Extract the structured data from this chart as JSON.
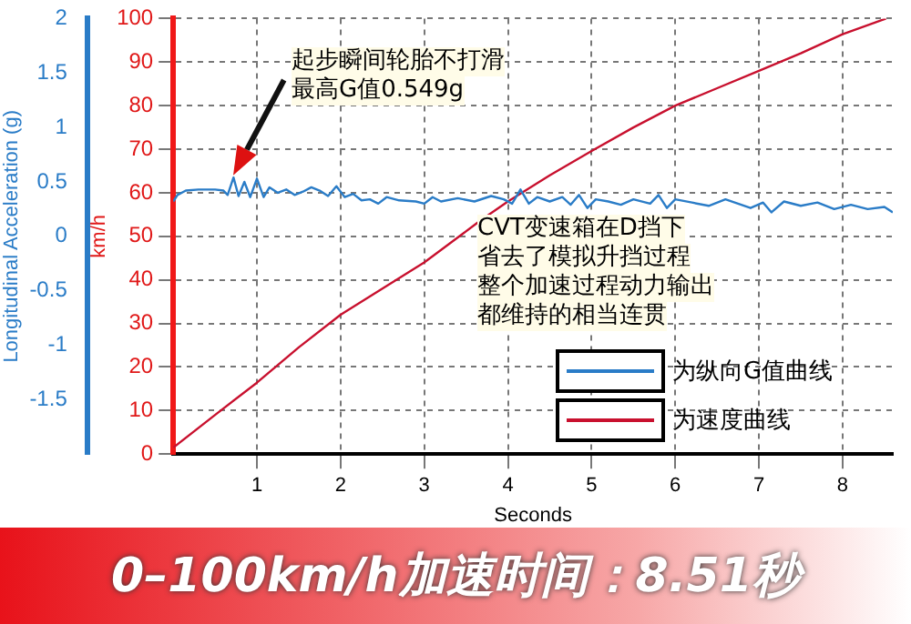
{
  "chart_data": {
    "type": "line",
    "title": "0–100km/h加速时间：8.51秒",
    "xlabel": "Seconds",
    "ylabel": "Longitudinal Acceleration (g)",
    "y2label": "km/h",
    "xlim": [
      0,
      8.6
    ],
    "xticks": [
      1,
      2,
      3,
      4,
      5,
      6,
      7,
      8
    ],
    "ylim": [
      -2,
      2
    ],
    "yticks": [
      -1.5,
      -1,
      -0.5,
      0,
      0.5,
      1,
      1.5,
      2
    ],
    "y2lim": [
      0,
      100
    ],
    "y2ticks": [
      0,
      10,
      20,
      30,
      40,
      50,
      60,
      70,
      80,
      90,
      100
    ],
    "grid": true,
    "legend": "bottom right",
    "marker": "none",
    "line_style": "solid",
    "annotations": [
      "起步瞬间轮胎不打滑",
      "最高G值0.549g",
      "CVT变速箱在D挡下",
      "省去了模拟升挡过程",
      "整个加速过程动力输出",
      "都维持的相当连贯"
    ],
    "series": [
      {
        "name": "为纵向G值曲线",
        "color": "#2a7cc7",
        "x": [
          0,
          0.05,
          0.15,
          0.3,
          0.5,
          0.6,
          0.65,
          0.72,
          0.78,
          0.85,
          0.92,
          1.0,
          1.08,
          1.15,
          1.25,
          1.35,
          1.45,
          1.55,
          1.65,
          1.75,
          1.85,
          1.95,
          2.05,
          2.15,
          2.25,
          2.35,
          2.45,
          2.55,
          2.7,
          2.9,
          3.0,
          3.1,
          3.2,
          3.4,
          3.6,
          3.8,
          3.95,
          4.05,
          4.15,
          4.25,
          4.35,
          4.5,
          4.65,
          4.75,
          4.85,
          4.95,
          5.05,
          5.2,
          5.35,
          5.5,
          5.7,
          5.8,
          5.9,
          6.0,
          6.2,
          6.4,
          6.6,
          6.75,
          6.9,
          7.05,
          7.15,
          7.3,
          7.5,
          7.7,
          7.9,
          8.1,
          8.3,
          8.5,
          8.6
        ],
        "values": [
          0.32,
          0.38,
          0.42,
          0.43,
          0.43,
          0.42,
          0.38,
          0.54,
          0.37,
          0.5,
          0.36,
          0.53,
          0.36,
          0.45,
          0.4,
          0.43,
          0.38,
          0.41,
          0.45,
          0.42,
          0.37,
          0.46,
          0.36,
          0.39,
          0.33,
          0.34,
          0.3,
          0.36,
          0.33,
          0.32,
          0.3,
          0.36,
          0.32,
          0.35,
          0.32,
          0.37,
          0.34,
          0.3,
          0.43,
          0.3,
          0.36,
          0.32,
          0.36,
          0.29,
          0.38,
          0.26,
          0.34,
          0.32,
          0.29,
          0.34,
          0.3,
          0.38,
          0.26,
          0.34,
          0.31,
          0.28,
          0.34,
          0.3,
          0.26,
          0.31,
          0.22,
          0.32,
          0.28,
          0.31,
          0.25,
          0.29,
          0.25,
          0.27,
          0.22
        ]
      },
      {
        "name": "为速度曲线",
        "color": "#c8102e",
        "axis": "y2",
        "x": [
          0,
          0.5,
          1,
          1.5,
          2,
          2.5,
          3,
          3.67,
          4,
          4.5,
          5,
          5.5,
          6,
          6.5,
          7,
          7.5,
          8,
          8.52
        ],
        "values": [
          1.5,
          9,
          16.4,
          24.5,
          32,
          38,
          44,
          53.6,
          58,
          64,
          69.6,
          75,
          80,
          84,
          88,
          92,
          96.4,
          100
        ]
      }
    ]
  }
}
